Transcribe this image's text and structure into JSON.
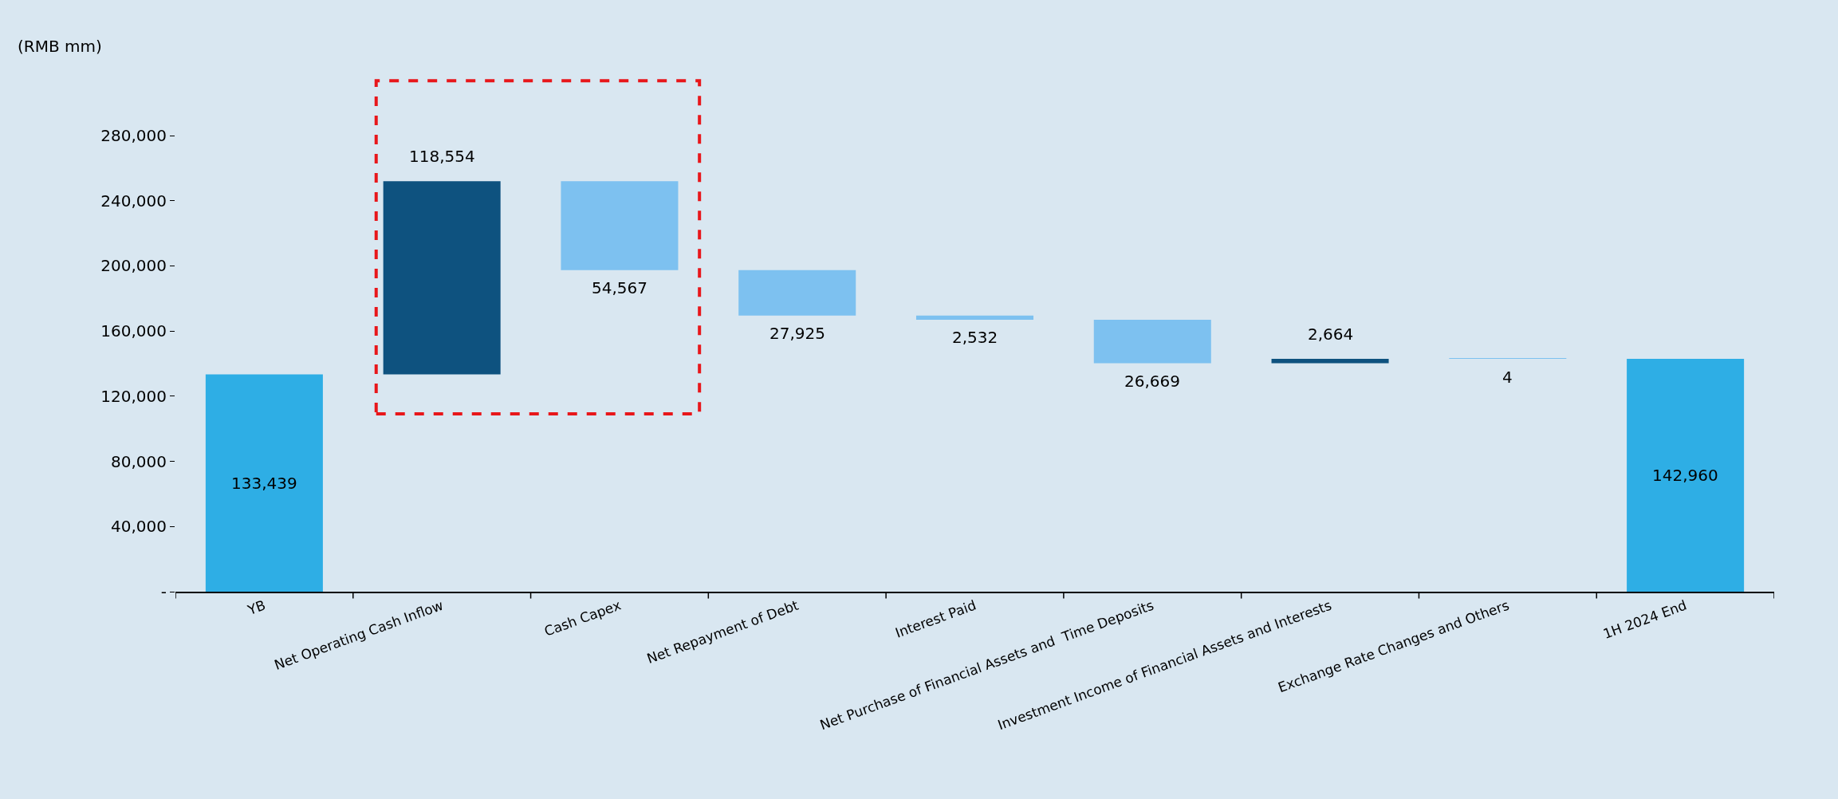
{
  "chart_data": {
    "type": "bar",
    "ylabel": "(RMB mm)",
    "categories": [
      "YB",
      "Net Operating Cash Inflow",
      "Cash Capex",
      "Net Repayment of Debt",
      "Interest Paid",
      "Net Purchase of Financial Assets and  Time Deposits",
      "Investment Income of Financial Assets and Interests",
      "Exchange Rate Changes and Others",
      "1H 2024 End"
    ],
    "values": [
      133439,
      118554,
      54567,
      27925,
      2532,
      26669,
      2664,
      4,
      142960
    ],
    "base": [
      0,
      133439,
      197426,
      169501,
      166969,
      140300,
      140300,
      142960,
      0
    ],
    "colors": [
      "#2eaee5",
      "#0e527f",
      "#7dc1f0",
      "#7dc1f0",
      "#7dc1f0",
      "#7dc1f0",
      "#0e527f",
      "#7dc1f0",
      "#2eaee5"
    ],
    "value_labels": [
      "133,439",
      "118,554",
      "54,567",
      "27,925",
      "2,532",
      "26,669",
      "2,664",
      "4",
      "142,960"
    ],
    "ylim": [
      0,
      280000
    ],
    "yticks": [
      {
        "value": 0,
        "label": "-"
      },
      {
        "value": 40000,
        "label": "40,000"
      },
      {
        "value": 80000,
        "label": "80,000"
      },
      {
        "value": 120000,
        "label": "120,000"
      },
      {
        "value": 160000,
        "label": "160,000"
      },
      {
        "value": 200000,
        "label": "200,000"
      },
      {
        "value": 240000,
        "label": "240,000"
      },
      {
        "value": 280000,
        "label": "280,000"
      }
    ],
    "grid": false
  }
}
